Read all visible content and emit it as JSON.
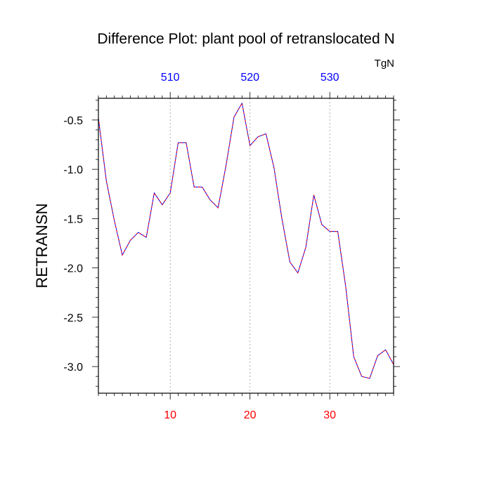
{
  "chart_data": {
    "type": "line",
    "title": "Difference Plot: plant pool of retranslocated N",
    "units": "TgN",
    "ylabel": "RETRANSN",
    "xlim": [
      1,
      38
    ],
    "ylim": [
      -3.27,
      -0.28
    ],
    "grid": "vertical dotted lines at top/bottom major ticks",
    "bottom_axis": {
      "ticks": [
        10,
        20,
        30
      ],
      "labels": [
        "10",
        "20",
        "30"
      ],
      "color": "#ff0000"
    },
    "top_axis": {
      "ticks": [
        10,
        20,
        30
      ],
      "labels": [
        "510",
        "520",
        "530"
      ],
      "color": "#0000ff"
    },
    "y_axis": {
      "ticks": [
        -0.5,
        -1.0,
        -1.5,
        -2.0,
        -2.5,
        -3.0
      ],
      "labels": [
        "-0.5",
        "-1.0",
        "-1.5",
        "-2.0",
        "-2.5",
        "-3.0"
      ]
    },
    "series": [
      {
        "colors": [
          "#0000ff",
          "#ff0000"
        ],
        "style": "dashed",
        "x": [
          1,
          2,
          3,
          4,
          5,
          6,
          7,
          8,
          9,
          10,
          11,
          12,
          13,
          14,
          15,
          16,
          17,
          18,
          19,
          20,
          21,
          22,
          23,
          24,
          25,
          26,
          27,
          28,
          29,
          30,
          31,
          32,
          33,
          34,
          35,
          36,
          37,
          38
        ],
        "values": [
          -0.48,
          -1.12,
          -1.52,
          -1.87,
          -1.72,
          -1.64,
          -1.69,
          -1.24,
          -1.36,
          -1.24,
          -0.73,
          -0.73,
          -1.18,
          -1.18,
          -1.31,
          -1.39,
          -0.96,
          -0.47,
          -0.33,
          -0.76,
          -0.67,
          -0.64,
          -0.98,
          -1.5,
          -1.94,
          -2.05,
          -1.79,
          -1.26,
          -1.56,
          -1.63,
          -1.63,
          -2.19,
          -2.9,
          -3.1,
          -3.12,
          -2.89,
          -2.83,
          -2.98
        ]
      }
    ]
  }
}
